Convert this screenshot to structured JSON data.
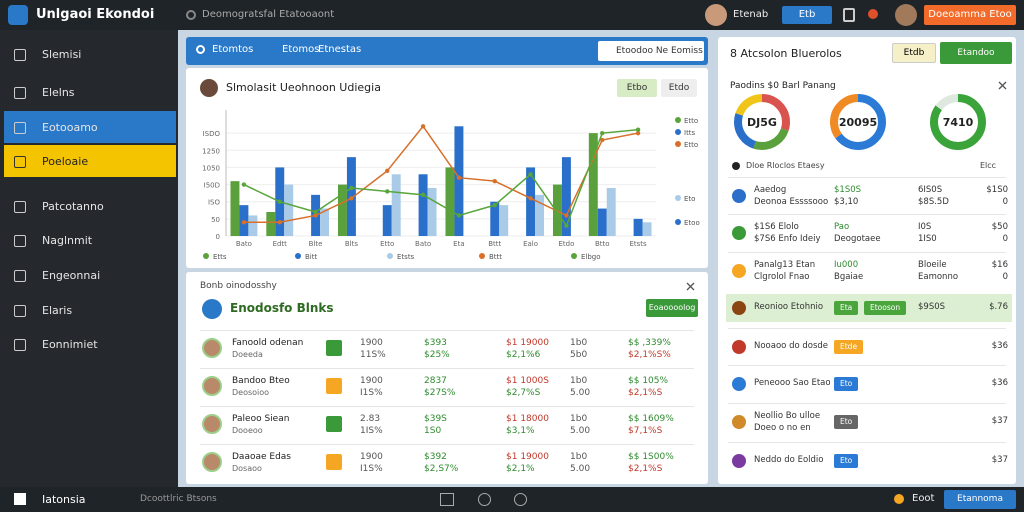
{
  "topbar": {
    "app_name": "Unlgaoi Ekondoi",
    "search": "Deomogratsfal Etatooaont",
    "user": "Etenab",
    "button": "Etb",
    "action": "Doeoamma Etoo"
  },
  "sidebar": {
    "items": [
      "Slemisi",
      "Elelns",
      "Eotooamo",
      "Poeloaie",
      "Patcotanno",
      "Naglnmit",
      "Engeonnai",
      "Elaris",
      "Eonnimiet"
    ]
  },
  "toolbar": {
    "tabs": [
      "Etomtos",
      "Etomos",
      "Etnestas"
    ],
    "search": "Etoodoo Ne Eomiss"
  },
  "chart_card": {
    "title": "Slmolasit Ueohnoon Udiegia",
    "buttons": [
      "Etbo",
      "Etdo"
    ],
    "chart_data": {
      "type": "bar",
      "categories": [
        "Bato",
        "Edtt",
        "Blte",
        "Blts",
        "Etto",
        "Bato",
        "Eta",
        "Bttt",
        "Ealo",
        "Etdo",
        "Btto",
        "Etsts"
      ],
      "ylim": [
        0,
        350
      ],
      "yticks": [
        0,
        50,
        {
          "value": 100,
          "label": "ISO"
        },
        {
          "value": 150,
          "label": "I50D"
        },
        {
          "value": 200,
          "label": "1050"
        },
        {
          "value": 250,
          "label": "1250"
        },
        {
          "value": 300,
          "label": "ISDO"
        }
      ],
      "grid": true,
      "series": [
        {
          "name": "Etts",
          "type": "bar",
          "color": "#5aa03c",
          "values": [
            160,
            70,
            0,
            150,
            0,
            0,
            200,
            0,
            0,
            150,
            300,
            0
          ]
        },
        {
          "name": "Bitt",
          "type": "bar",
          "color": "#2a6fc9",
          "values": [
            90,
            200,
            120,
            230,
            90,
            180,
            320,
            100,
            200,
            230,
            80,
            50
          ]
        },
        {
          "name": "Etsts",
          "type": "bar",
          "color": "#a9cbe8",
          "values": [
            60,
            150,
            80,
            0,
            180,
            140,
            0,
            90,
            120,
            0,
            140,
            40
          ]
        },
        {
          "name": "Bttt",
          "type": "line",
          "color": "#d8702a",
          "values": [
            40,
            40,
            60,
            110,
            190,
            320,
            170,
            160,
            110,
            60,
            280,
            300
          ]
        },
        {
          "name": "Elbgo",
          "type": "line",
          "color": "#58a53a",
          "values": [
            150,
            100,
            70,
            140,
            130,
            120,
            60,
            90,
            180,
            30,
            300,
            310
          ]
        }
      ],
      "side_legend": [
        {
          "label": "Etto",
          "color": "#58a53a"
        },
        {
          "label": "Itts",
          "color": "#2a6fc9"
        },
        {
          "label": "Etto",
          "color": "#d8702a"
        },
        {
          "label": "Eto",
          "color": "#a9cbe8"
        },
        {
          "label": "Etoo",
          "color": "#2a6fc9"
        }
      ]
    }
  },
  "table_card": {
    "header": "Bonb oinodosshy",
    "title": "Enodosfo Blnks",
    "button": "Eoaoooolog",
    "rows": [
      {
        "name": "Fanoold odenan",
        "sub": "Doeeda",
        "badge_color": "#3a9a3a",
        "cells": [
          [
            "1900",
            "11S%"
          ],
          [
            "$393",
            "$25%"
          ],
          [
            "$1 19000",
            "$2,1%6"
          ],
          [
            "1b0",
            "5b0"
          ],
          [
            "$$ ,339%",
            "$2,1%S%"
          ]
        ]
      },
      {
        "name": "Bandoo Bteo",
        "sub": "Deosoioo",
        "badge_color": "#f5a623",
        "cells": [
          [
            "1900",
            "I1S%"
          ],
          [
            "2837",
            "$27S%"
          ],
          [
            "$1 1000S",
            "$2,7%S"
          ],
          [
            "1b0",
            "5.00"
          ],
          [
            "$$ 105%",
            "$2,1%S"
          ]
        ]
      },
      {
        "name": "Paleoo Siean",
        "sub": "Dooeoo",
        "badge_color": "#3a9a3a",
        "cells": [
          [
            "2.83",
            "1IS%"
          ],
          [
            "$39S",
            "1S0"
          ],
          [
            "$1 18000",
            "$3,1%"
          ],
          [
            "1b0",
            "5.00"
          ],
          [
            "$$ 1609%",
            "$7,1%S"
          ]
        ]
      },
      {
        "name": "Daaoae Edas",
        "sub": "Dosaoo",
        "badge_color": "#f5a623",
        "cells": [
          [
            "1900",
            "I1S%"
          ],
          [
            "$392",
            "$2,S7%"
          ],
          [
            "$1 19000",
            "$2,1%"
          ],
          [
            "1b0",
            "5.00"
          ],
          [
            "$$ 1S00%",
            "$2,1%S"
          ]
        ]
      }
    ]
  },
  "right_panel": {
    "title": "8 Atcsolon Bluerolos",
    "buttons": [
      "Etdb",
      "Etandoo"
    ],
    "subtitle": "Paodins $0 Barl Panang",
    "donuts": [
      {
        "label": "DJ5G",
        "values": [
          30,
          25,
          25,
          20
        ],
        "colors": [
          "#d9534f",
          "#5aa03c",
          "#2a6fc9",
          "#f0c419"
        ]
      },
      {
        "label": "20095",
        "values": [
          65,
          35
        ],
        "colors": [
          "#2a7ad6",
          "#f08a24"
        ]
      },
      {
        "label": "7410",
        "values": [
          85,
          15
        ],
        "colors": [
          "#3aa33a",
          "#dfe8df"
        ]
      }
    ],
    "section": "Dloe Rloclos Etaesy",
    "section_link": "Elcc",
    "rows": [
      {
        "icon": "#2a6fc9",
        "cells": [
          [
            "Aaedog",
            "Deonoa Essssooo"
          ],
          [
            "$1S0S",
            "$3,10"
          ],
          [
            "6IS0S",
            "$8S.5D"
          ],
          [
            "$1S0",
            "0"
          ]
        ]
      },
      {
        "icon": "#3a9a3a",
        "cells": [
          [
            "$1S6 Elolo",
            "$7S6 Enfo Ideiy"
          ],
          [
            "Pao",
            "Deogotaee"
          ],
          [
            "I0S",
            "1IS0"
          ],
          [
            "$50",
            "0"
          ]
        ]
      },
      {
        "icon": "#f5a623",
        "cells": [
          [
            "Panalg13 Etan",
            "Clgrolol Fnao"
          ],
          [
            "Iu000",
            "Bgaiae"
          ],
          [
            "Bloeile",
            "Eamonno"
          ],
          [
            "$16",
            "0"
          ]
        ]
      },
      {
        "icon": "#8b4513",
        "highlight": true,
        "cells": [
          [
            "Reonioo Etohnio"
          ],
          {
            "badge": [
              "Eta",
              "Etooson"
            ],
            "color": "#4aa63c"
          },
          [
            "$9S0S"
          ],
          [
            "$.76"
          ]
        ]
      },
      {
        "icon": "#c0392b",
        "cells": [
          [
            "Nooaoo do dosde"
          ],
          {
            "badge": [
              "Etde"
            ],
            "color": "#f5a623"
          },
          [],
          [
            "$36"
          ]
        ]
      },
      {
        "icon": "#2a7ad6",
        "cells": [
          [
            "Peneooo Sao Etao"
          ],
          {
            "badge": [
              "Eto"
            ],
            "color": "#2a7ad6"
          },
          [],
          [
            "$36"
          ]
        ]
      },
      {
        "icon": "#d08a2a",
        "cells": [
          [
            "Neollio Bo ulloe",
            "Doeo o no en"
          ],
          {
            "badge": [
              "Eto"
            ],
            "color": "#666666"
          },
          [],
          [
            "$37"
          ]
        ]
      },
      {
        "icon": "#7a3aa0",
        "cells": [
          [
            "Neddo do Eoldio"
          ],
          {
            "badge": [
              "Eto"
            ],
            "color": "#2a7ad6"
          },
          [],
          [
            "$37"
          ]
        ]
      }
    ]
  },
  "bottombar": {
    "app": "Iatonsia",
    "status": "Dcoottlric Btsons",
    "user": "Eoot",
    "button": "Etannoma"
  }
}
